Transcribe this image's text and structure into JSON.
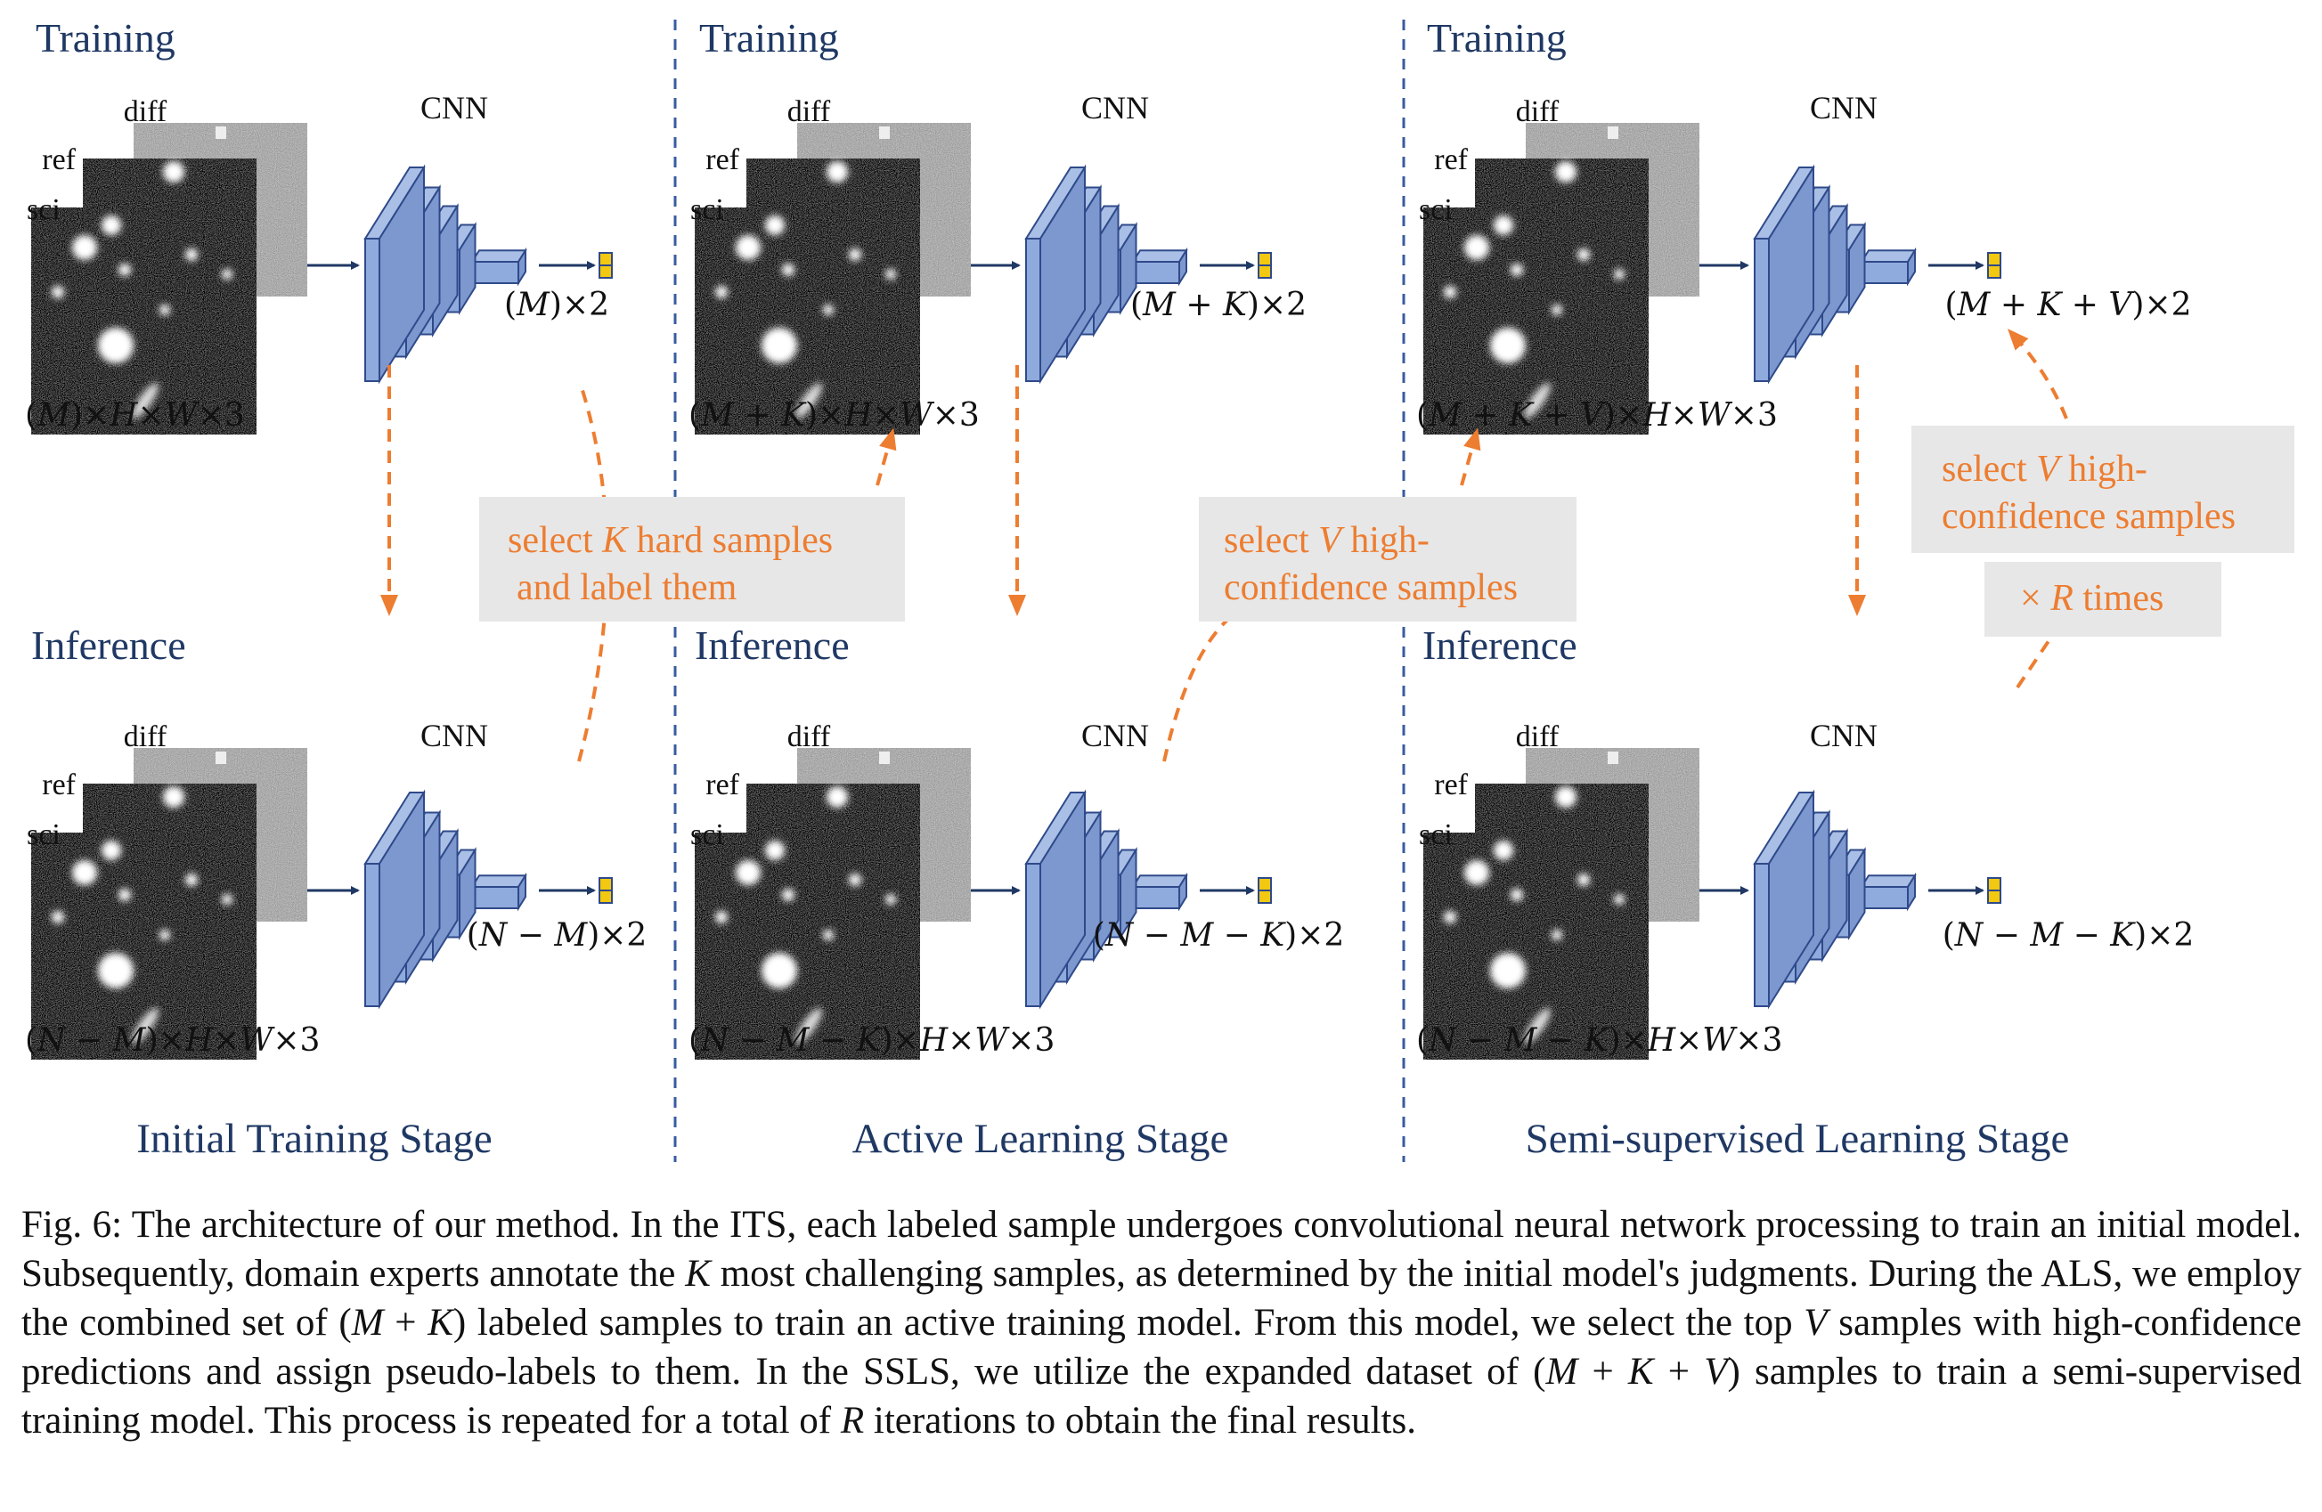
{
  "colors": {
    "heading": "#1f3864",
    "orange": "#ed7d31",
    "cnn_fill": "#8faadc",
    "cnn_stroke": "#2f4a8a",
    "divider": "#3a5ba0",
    "callout_bg": "#e7e7e7"
  },
  "labels": {
    "training": "Training",
    "inference": "Inference",
    "cnn": "CNN",
    "diff": "diff",
    "ref": "ref",
    "sci": "sci"
  },
  "stages": [
    {
      "name": "Initial Training Stage",
      "train_input": "(M)×H×W×3",
      "train_output": "(M)×2",
      "infer_input": "(N − M)×H×W×3",
      "infer_output": "(N − M)×2"
    },
    {
      "name": "Active Learning Stage",
      "train_input": "(M + K)×H×W×3",
      "train_output": "(M + K)×2",
      "infer_input": "(N − M − K)×H×W×3",
      "infer_output": "(N − M − K)×2"
    },
    {
      "name": "Semi-supervised Learning Stage",
      "train_input": "(M + K + V)×H×W×3",
      "train_output": "(M + K + V)×2",
      "infer_input": "(N − M − K)×H×W×3",
      "infer_output": "(N − M − K)×2"
    }
  ],
  "callouts": {
    "hard_samples": [
      "select K hard samples",
      "and label them"
    ],
    "high_conf_1": [
      "select V high-",
      "confidence samples"
    ],
    "high_conf_2": [
      "select V high-",
      "confidence samples"
    ],
    "times": "× R times"
  },
  "caption": {
    "label": "Fig. 6:",
    "parts": [
      {
        "t": " The architecture of our method. In the ITS, each labeled sample undergoes convolutional neural network processing to train an initial model. Subsequently, domain experts annotate the ",
        "i": false
      },
      {
        "t": "K",
        "i": true
      },
      {
        "t": " most challenging samples, as determined by the initial model's judgments. During the ALS, we employ the combined set of (",
        "i": false
      },
      {
        "t": "M",
        "i": true
      },
      {
        "t": " + ",
        "i": false
      },
      {
        "t": "K",
        "i": true
      },
      {
        "t": ") labeled samples to train an active training model. From this model, we select the top ",
        "i": false
      },
      {
        "t": "V",
        "i": true
      },
      {
        "t": " samples with high-confidence predictions and assign pseudo-labels to them. In the SSLS, we utilize the expanded dataset of (",
        "i": false
      },
      {
        "t": "M",
        "i": true
      },
      {
        "t": " + ",
        "i": false
      },
      {
        "t": "K",
        "i": true
      },
      {
        "t": " + ",
        "i": false
      },
      {
        "t": "V",
        "i": true
      },
      {
        "t": ") samples to train a semi-supervised training model. This process is repeated for a total of ",
        "i": false
      },
      {
        "t": "R",
        "i": true
      },
      {
        "t": " iterations to obtain the final results.",
        "i": false
      }
    ]
  }
}
